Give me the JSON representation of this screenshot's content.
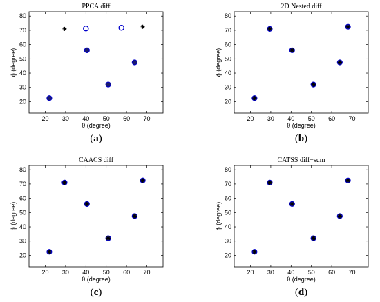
{
  "colors": {
    "marker_fill": "#1a1a6e",
    "marker_edge": "#0000cc",
    "star": "#000000",
    "axis": "#000000"
  },
  "chart_data": [
    {
      "type": "scatter",
      "title": "PPCA diff",
      "xlabel": "θ (degree)",
      "ylabel": "ϕ (degree)",
      "xlim": [
        12,
        78
      ],
      "ylim": [
        12,
        83
      ],
      "xticks": [
        20,
        30,
        40,
        50,
        60,
        70
      ],
      "yticks": [
        20,
        30,
        40,
        50,
        60,
        70,
        80
      ],
      "grid": false,
      "caption": {
        "open": "(",
        "letter": "a",
        "close": ")"
      },
      "series": [
        {
          "marker": "filled-circle",
          "x": [
            22,
            40.5,
            51,
            64
          ],
          "y": [
            22.5,
            56,
            32,
            47.5
          ]
        },
        {
          "marker": "open-circle",
          "x": [
            40,
            57.5
          ],
          "y": [
            71.3,
            71.8
          ]
        },
        {
          "marker": "star",
          "x": [
            29.5,
            68
          ],
          "y": [
            71,
            72.5
          ]
        }
      ]
    },
    {
      "type": "scatter",
      "title": "2D Nested diff",
      "xlabel": "θ (degree)",
      "ylabel": "ϕ (degree)",
      "xlim": [
        12,
        78
      ],
      "ylim": [
        12,
        83
      ],
      "xticks": [
        20,
        30,
        40,
        50,
        60,
        70
      ],
      "yticks": [
        20,
        30,
        40,
        50,
        60,
        70,
        80
      ],
      "grid": false,
      "caption": {
        "open": "(",
        "letter": "b",
        "close": ")"
      },
      "series": [
        {
          "marker": "filled-circle",
          "x": [
            22,
            29.5,
            40.5,
            51,
            64,
            68
          ],
          "y": [
            22.5,
            71,
            56,
            32,
            47.5,
            72.5
          ]
        },
        {
          "marker": "star",
          "x": [
            22,
            29.5,
            40.5,
            51,
            64,
            68
          ],
          "y": [
            22.5,
            71,
            56,
            32,
            47.5,
            72.5
          ]
        }
      ]
    },
    {
      "type": "scatter",
      "title": "CAACS diff",
      "xlabel": "θ (degree)",
      "ylabel": "ϕ (degree)",
      "xlim": [
        12,
        78
      ],
      "ylim": [
        12,
        83
      ],
      "xticks": [
        20,
        30,
        40,
        50,
        60,
        70
      ],
      "yticks": [
        20,
        30,
        40,
        50,
        60,
        70,
        80
      ],
      "grid": false,
      "caption": {
        "open": "(",
        "letter": "c",
        "close": ")"
      },
      "series": [
        {
          "marker": "filled-circle",
          "x": [
            22,
            29.5,
            40.5,
            51,
            64,
            68
          ],
          "y": [
            22.5,
            71,
            56,
            32,
            47.5,
            72.5
          ]
        },
        {
          "marker": "star",
          "x": [
            22,
            29.5,
            40.5,
            51,
            64,
            68
          ],
          "y": [
            22.5,
            71,
            56,
            32,
            47.5,
            72.5
          ]
        }
      ]
    },
    {
      "type": "scatter",
      "title": "CATSS diff−sum",
      "xlabel": "θ (degree)",
      "ylabel": "ϕ (degree)",
      "xlim": [
        12,
        78
      ],
      "ylim": [
        12,
        83
      ],
      "xticks": [
        20,
        30,
        40,
        50,
        60,
        70
      ],
      "yticks": [
        20,
        30,
        40,
        50,
        60,
        70,
        80
      ],
      "grid": false,
      "caption": {
        "open": "(",
        "letter": "d",
        "close": ")"
      },
      "series": [
        {
          "marker": "filled-circle",
          "x": [
            22,
            29.5,
            40.5,
            51,
            64,
            68
          ],
          "y": [
            22.5,
            71,
            56,
            32,
            47.5,
            72.5
          ]
        },
        {
          "marker": "star",
          "x": [
            22,
            29.5,
            40.5,
            51,
            64,
            68
          ],
          "y": [
            22.5,
            71,
            56,
            32,
            47.5,
            72.5
          ]
        }
      ]
    }
  ]
}
